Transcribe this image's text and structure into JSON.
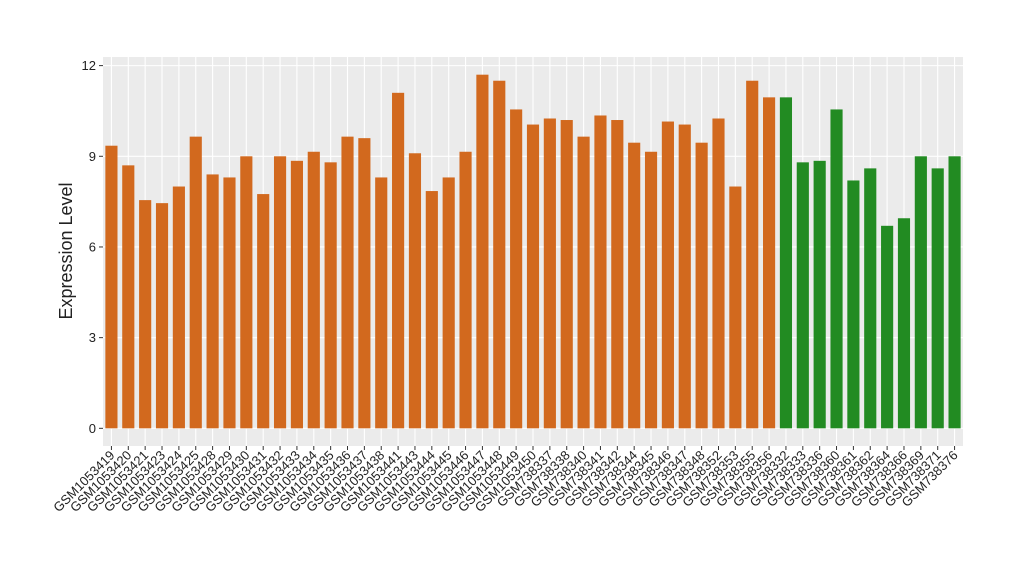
{
  "chart_data": {
    "type": "bar",
    "y_label": "Expression Level",
    "categories": [
      "GSM1053419",
      "GSM1053420",
      "GSM1053421",
      "GSM1053423",
      "GSM1053424",
      "GSM1053425",
      "GSM1053428",
      "GSM1053429",
      "GSM1053430",
      "GSM1053431",
      "GSM1053432",
      "GSM1053433",
      "GSM1053434",
      "GSM1053435",
      "GSM1053436",
      "GSM1053437",
      "GSM1053438",
      "GSM1053441",
      "GSM1053443",
      "GSM1053444",
      "GSM1053445",
      "GSM1053446",
      "GSM1053447",
      "GSM1053448",
      "GSM1053449",
      "GSM1053450",
      "GSM738337",
      "GSM738338",
      "GSM738340",
      "GSM738341",
      "GSM738342",
      "GSM738344",
      "GSM738345",
      "GSM738346",
      "GSM738347",
      "GSM738348",
      "GSM738352",
      "GSM738353",
      "GSM738355",
      "GSM738356",
      "GSM738332",
      "GSM738333",
      "GSM738336",
      "GSM738360",
      "GSM738361",
      "GSM738362",
      "GSM738364",
      "GSM738366",
      "GSM738369",
      "GSM738371",
      "GSM738376"
    ],
    "values": [
      9.35,
      8.7,
      7.55,
      7.45,
      8.0,
      9.65,
      8.4,
      8.3,
      9.0,
      7.75,
      9.0,
      8.85,
      9.15,
      8.8,
      9.65,
      9.6,
      8.3,
      11.1,
      9.1,
      7.85,
      8.3,
      9.15,
      11.7,
      11.5,
      10.55,
      10.05,
      10.25,
      10.2,
      9.65,
      10.35,
      10.2,
      9.45,
      9.15,
      10.15,
      10.05,
      9.45,
      10.25,
      8.0,
      11.5,
      10.95,
      10.95,
      8.8,
      8.85,
      10.55,
      8.2,
      8.6,
      6.7,
      6.95,
      9.0,
      8.6,
      9.0
    ],
    "colors": [
      "#d2691e",
      "#d2691e",
      "#d2691e",
      "#d2691e",
      "#d2691e",
      "#d2691e",
      "#d2691e",
      "#d2691e",
      "#d2691e",
      "#d2691e",
      "#d2691e",
      "#d2691e",
      "#d2691e",
      "#d2691e",
      "#d2691e",
      "#d2691e",
      "#d2691e",
      "#d2691e",
      "#d2691e",
      "#d2691e",
      "#d2691e",
      "#d2691e",
      "#d2691e",
      "#d2691e",
      "#d2691e",
      "#d2691e",
      "#d2691e",
      "#d2691e",
      "#d2691e",
      "#d2691e",
      "#d2691e",
      "#d2691e",
      "#d2691e",
      "#d2691e",
      "#d2691e",
      "#d2691e",
      "#d2691e",
      "#d2691e",
      "#d2691e",
      "#d2691e",
      "#228b22",
      "#228b22",
      "#228b22",
      "#228b22",
      "#228b22",
      "#228b22",
      "#228b22",
      "#228b22",
      "#228b22",
      "#228b22",
      "#228b22"
    ],
    "ylim": [
      -0.585,
      12.285
    ],
    "yticks": [
      0,
      3,
      6,
      9,
      12
    ],
    "grid": true
  }
}
